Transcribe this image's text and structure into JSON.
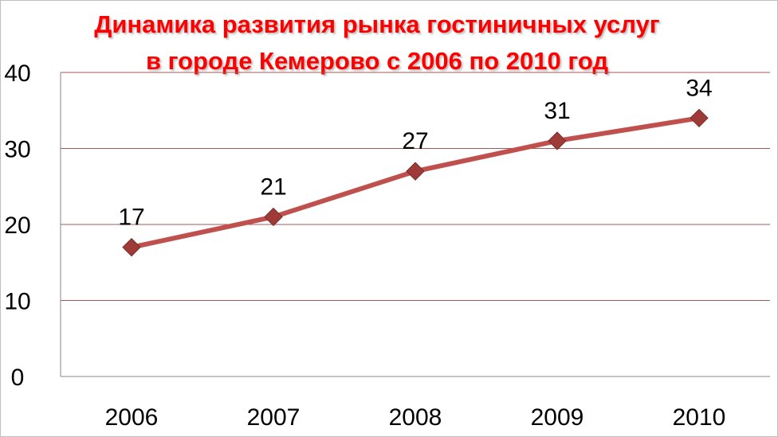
{
  "chart_data": {
    "type": "line",
    "title_lines": [
      "Динамика развития рынка гостиничных услуг",
      "в городе Кемерово с 2006 по 2010 год"
    ],
    "categories": [
      "2006",
      "2007",
      "2008",
      "2009",
      "2010"
    ],
    "series": [
      {
        "values": [
          17,
          21,
          27,
          31,
          34
        ]
      }
    ],
    "ylim": [
      0,
      40
    ],
    "yticks": [
      "0",
      "10",
      "20",
      "30",
      "40"
    ],
    "data_labels": [
      "17",
      "21",
      "27",
      "31",
      "34"
    ],
    "grid": true,
    "legend": "none",
    "colors": {
      "title": "#ff0000",
      "line": "#c0504d",
      "marker": "#9e3b38",
      "gridline": "#a05a5a"
    }
  }
}
